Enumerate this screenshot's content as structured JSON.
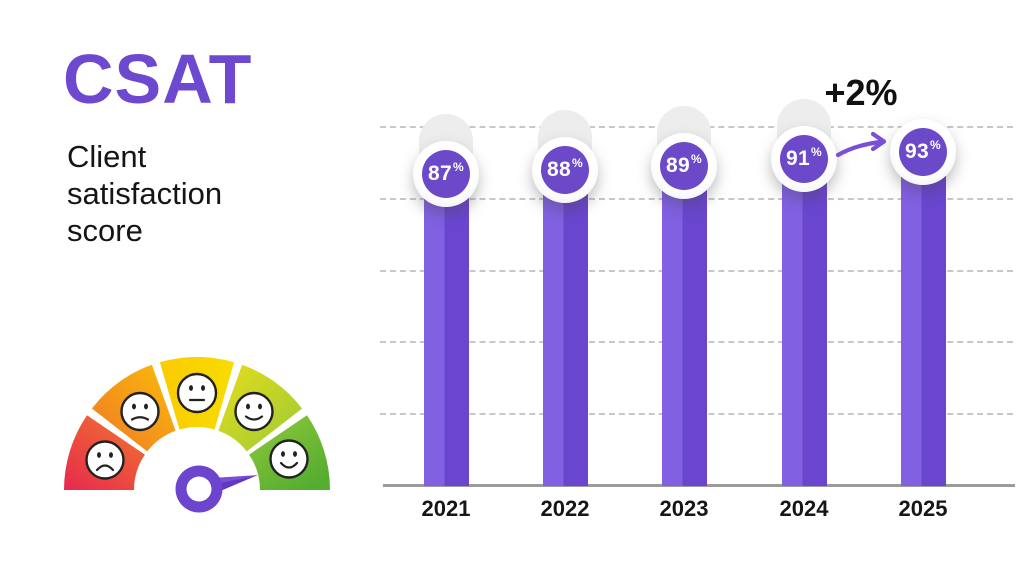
{
  "header": {
    "title": "CSAT",
    "subtitle": "Client satisfaction score",
    "title_color": "#6C49CE",
    "text_color": "#151515"
  },
  "gauge": {
    "description": "semicircular satisfaction meter with five emoji segments",
    "segment_colors": [
      "#E7294E",
      "#F5921D",
      "#F9D600",
      "#C6D52A",
      "#63B52E"
    ],
    "faces": [
      "very-sad",
      "sad",
      "neutral",
      "happy",
      "very-happy"
    ],
    "needle_color": "#7B4ED6",
    "needle_points_to": "very-happy"
  },
  "chart_data": {
    "type": "bar",
    "title": "",
    "xlabel": "",
    "ylabel": "",
    "categories": [
      "2021",
      "2022",
      "2023",
      "2024",
      "2025"
    ],
    "values": [
      87,
      88,
      89,
      91,
      93
    ],
    "unit": "%",
    "point_labels": [
      "87%",
      "88%",
      "89%",
      "91%",
      "93%"
    ],
    "ylim": [
      0,
      100
    ],
    "gridline_values": [
      20,
      40,
      60,
      80,
      100
    ],
    "grid_style": "dashed",
    "legend": "none",
    "bar_color_light": "#8160E2",
    "bar_color_dark": "#6A46CE",
    "badge_fill": "#6B49C8",
    "badge_ring": "#FFFFFF",
    "track_color": "#EDEDED",
    "baseline_color": "#9B9B9B",
    "annotation": {
      "text": "+2%",
      "from_category": "2024",
      "to_category": "2025",
      "arrow_color": "#7B4ED6"
    }
  }
}
